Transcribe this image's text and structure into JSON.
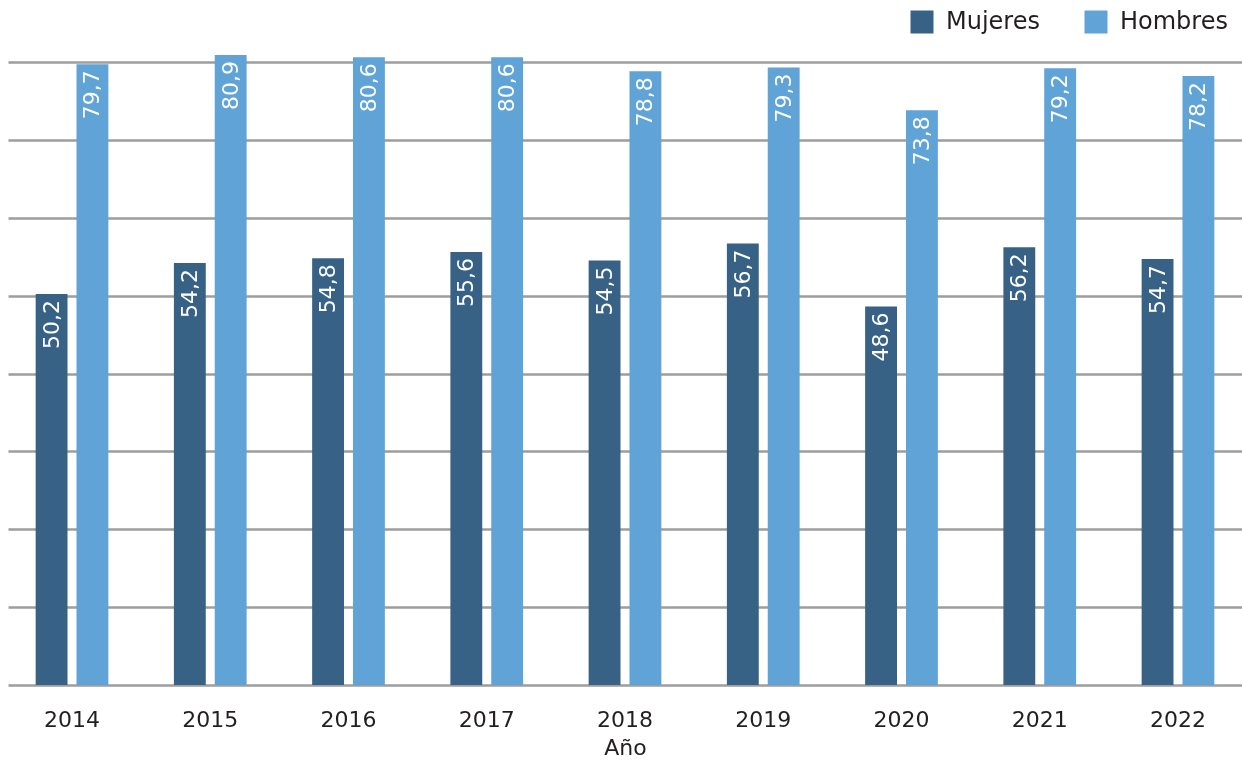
{
  "chart_data": {
    "type": "bar",
    "xlabel": "Año",
    "categories": [
      "2014",
      "2015",
      "2016",
      "2017",
      "2018",
      "2019",
      "2020",
      "2021",
      "2022"
    ],
    "series": [
      {
        "name": "Mujeres",
        "color": "#376286",
        "values": [
          50.2,
          54.2,
          54.8,
          55.6,
          54.5,
          56.7,
          48.6,
          56.2,
          54.7
        ],
        "value_labels": [
          "50,2",
          "54,2",
          "54,8",
          "55,6",
          "54,5",
          "56,7",
          "48,6",
          "56,2",
          "54,7"
        ]
      },
      {
        "name": "Hombres",
        "color": "#5fa3d7",
        "values": [
          79.7,
          80.9,
          80.6,
          80.6,
          78.8,
          79.3,
          73.8,
          79.2,
          78.2
        ],
        "value_labels": [
          "79,7",
          "80,9",
          "80,6",
          "80,6",
          "78,8",
          "79,3",
          "73,8",
          "79,2",
          "78,2"
        ]
      }
    ],
    "yticks": [
      {
        "value": 0,
        "label": null
      },
      {
        "value": 10,
        "label": null
      },
      {
        "value": 20,
        "label": null
      },
      {
        "value": 30,
        "label": null
      },
      {
        "value": 40,
        "label": null
      },
      {
        "value": 50,
        "label": null
      },
      {
        "value": 60,
        "label": null
      },
      {
        "value": 70,
        "label": null
      },
      {
        "value": 80,
        "label": null
      }
    ],
    "grid": "y",
    "legend": "top right",
    "tick_labels": "x"
  }
}
